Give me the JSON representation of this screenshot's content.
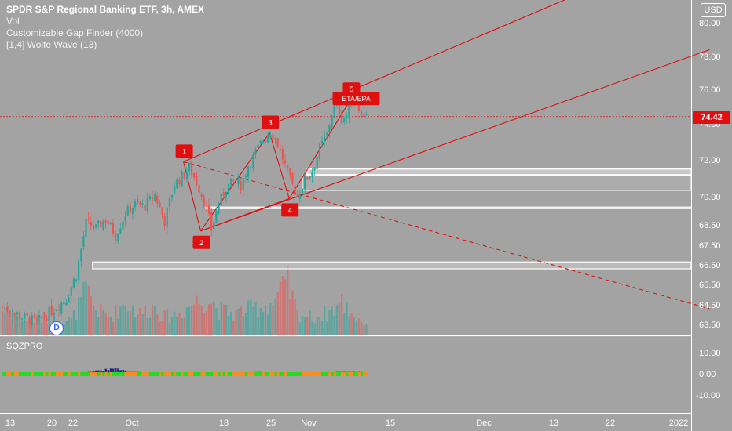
{
  "header": {
    "title": "SPDR S&P Regional Banking ETF, 3h, AMEX",
    "indicators": [
      "Vol",
      "Customizable Gap Finder (4000)",
      "[1,4] Wolfe Wave (13)"
    ],
    "currency_button": "USD"
  },
  "oscillator": {
    "label": "SQZPRO"
  },
  "price_badge": "74.42",
  "dividend_marker": "D",
  "wave_labels": [
    "1",
    "2",
    "3",
    "4",
    "5",
    "ETA/EPA"
  ],
  "colors": {
    "background": "#a3a3a3",
    "up": "#26a69a",
    "down": "#ef5350",
    "wolfe_lines": "#e01010",
    "gap_boxes": "#ffffff",
    "sqz_green": "#22dd22",
    "sqz_orange": "#ff8c1a",
    "sqz_navy": "#1a1a8c",
    "sqz_teal": "#2a9a9a"
  },
  "chart_data": {
    "type": "candlestick",
    "title": "SPDR S&P Regional Banking ETF, 3h, AMEX",
    "current_price": 74.42,
    "y_ticks": [
      "80.00",
      "78.00",
      "76.00",
      "74.00",
      "72.00",
      "70.00",
      "68.50",
      "67.50",
      "66.50",
      "65.50",
      "64.50",
      "63.50"
    ],
    "x_ticks": [
      "13",
      "20",
      "22",
      "Oct",
      "18",
      "25",
      "Nov",
      "15",
      "Dec",
      "13",
      "22",
      "2022"
    ],
    "oscillator_ticks": [
      "10.00",
      "0.00",
      "-10.00"
    ],
    "price_path": [
      [
        0,
        64.4
      ],
      [
        8,
        63.9
      ],
      [
        14,
        63.6
      ],
      [
        20,
        64.2
      ],
      [
        26,
        64.8
      ],
      [
        30,
        66.0
      ],
      [
        34,
        68.6
      ],
      [
        38,
        68.3
      ],
      [
        42,
        68.8
      ],
      [
        46,
        68.0
      ],
      [
        50,
        69.1
      ],
      [
        54,
        69.6
      ],
      [
        58,
        69.5
      ],
      [
        62,
        70.1
      ],
      [
        66,
        68.7
      ],
      [
        70,
        70.7
      ],
      [
        74,
        71.2
      ],
      [
        76,
        71.6
      ],
      [
        79,
        70.8
      ],
      [
        82,
        69.8
      ],
      [
        85,
        68.3
      ],
      [
        88,
        69.6
      ],
      [
        91,
        70.5
      ],
      [
        94,
        70.8
      ],
      [
        97,
        70.6
      ],
      [
        100,
        71.7
      ],
      [
        103,
        72.4
      ],
      [
        106,
        73.1
      ],
      [
        109,
        73.6
      ],
      [
        111,
        73.2
      ],
      [
        114,
        72.1
      ],
      [
        117,
        70.9
      ],
      [
        120,
        70.0
      ],
      [
        123,
        70.9
      ],
      [
        126,
        71.4
      ],
      [
        129,
        72.6
      ],
      [
        132,
        73.4
      ],
      [
        134,
        74.6
      ],
      [
        136,
        75.3
      ],
      [
        138,
        74.3
      ],
      [
        140,
        74.5
      ],
      [
        142,
        75.2
      ],
      [
        144,
        75.6
      ],
      [
        146,
        74.4
      ],
      [
        148,
        74.7
      ]
    ],
    "volume_profile": [
      [
        0,
        0.7
      ],
      [
        10,
        0.4
      ],
      [
        20,
        0.5
      ],
      [
        28,
        0.4
      ],
      [
        34,
        1.2
      ],
      [
        38,
        0.7
      ],
      [
        44,
        0.5
      ],
      [
        50,
        0.9
      ],
      [
        56,
        0.6
      ],
      [
        62,
        0.8
      ],
      [
        66,
        0.5
      ],
      [
        72,
        0.6
      ],
      [
        78,
        0.9
      ],
      [
        84,
        1.0
      ],
      [
        88,
        0.7
      ],
      [
        94,
        0.6
      ],
      [
        100,
        0.7
      ],
      [
        106,
        0.8
      ],
      [
        110,
        0.9
      ],
      [
        116,
        1.4
      ],
      [
        120,
        0.6
      ],
      [
        126,
        0.5
      ],
      [
        132,
        0.6
      ],
      [
        138,
        0.9
      ],
      [
        144,
        0.5
      ],
      [
        148,
        0.3
      ]
    ],
    "pivots": [
      {
        "label": "1",
        "bar": 74,
        "price": 71.9
      },
      {
        "label": "2",
        "bar": 81,
        "price": 68.2
      },
      {
        "label": "3",
        "bar": 109,
        "price": 73.5
      },
      {
        "label": "4",
        "bar": 117,
        "price": 69.9
      },
      {
        "label": "5",
        "bar": 142,
        "price": 75.4
      }
    ],
    "wolfe_lines": [
      {
        "from": [
          74,
          71.9
        ],
        "to": [
          288,
          85.0
        ],
        "style": "solid"
      },
      {
        "from": [
          81,
          68.2
        ],
        "to": [
          288,
          78.4
        ],
        "style": "solid"
      },
      {
        "from": [
          74,
          71.9
        ],
        "to": [
          288,
          64.3
        ],
        "style": "dashed"
      },
      {
        "from": [
          74,
          71.9
        ],
        "to": [
          81,
          68.2
        ],
        "style": "solid"
      },
      {
        "from": [
          81,
          68.2
        ],
        "to": [
          109,
          73.5
        ],
        "style": "solid"
      },
      {
        "from": [
          109,
          73.5
        ],
        "to": [
          117,
          69.9
        ],
        "style": "solid"
      },
      {
        "from": [
          117,
          69.9
        ],
        "to": [
          142,
          75.4
        ],
        "style": "solid"
      },
      {
        "from": [
          81,
          68.2
        ],
        "to": [
          117,
          69.9
        ],
        "style": "solid"
      }
    ],
    "gap_zones": [
      {
        "from_bar": 124,
        "low": 71.2,
        "high": 71.5
      },
      {
        "from_bar": 83,
        "low": 69.38,
        "high": 69.45
      },
      {
        "from_bar": 37,
        "low": 66.3,
        "high": 66.65
      }
    ],
    "sqz_momentum": [
      [
        0,
        -0.3
      ],
      [
        10,
        -0.4
      ],
      [
        20,
        -0.5
      ],
      [
        26,
        -0.3
      ],
      [
        30,
        0.2
      ],
      [
        34,
        0.9
      ],
      [
        40,
        1.6
      ],
      [
        44,
        2.4
      ],
      [
        48,
        2.0
      ],
      [
        54,
        1.0
      ],
      [
        60,
        0.4
      ],
      [
        66,
        0.2
      ],
      [
        72,
        -0.1
      ],
      [
        80,
        -0.5
      ],
      [
        86,
        -0.4
      ],
      [
        92,
        -0.2
      ],
      [
        98,
        0.3
      ],
      [
        104,
        0.9
      ],
      [
        108,
        0.7
      ],
      [
        114,
        -0.3
      ],
      [
        120,
        -0.6
      ],
      [
        124,
        -0.3
      ],
      [
        128,
        0.2
      ],
      [
        134,
        0.8
      ],
      [
        138,
        1.2
      ],
      [
        144,
        1.0
      ],
      [
        148,
        0.6
      ]
    ]
  }
}
